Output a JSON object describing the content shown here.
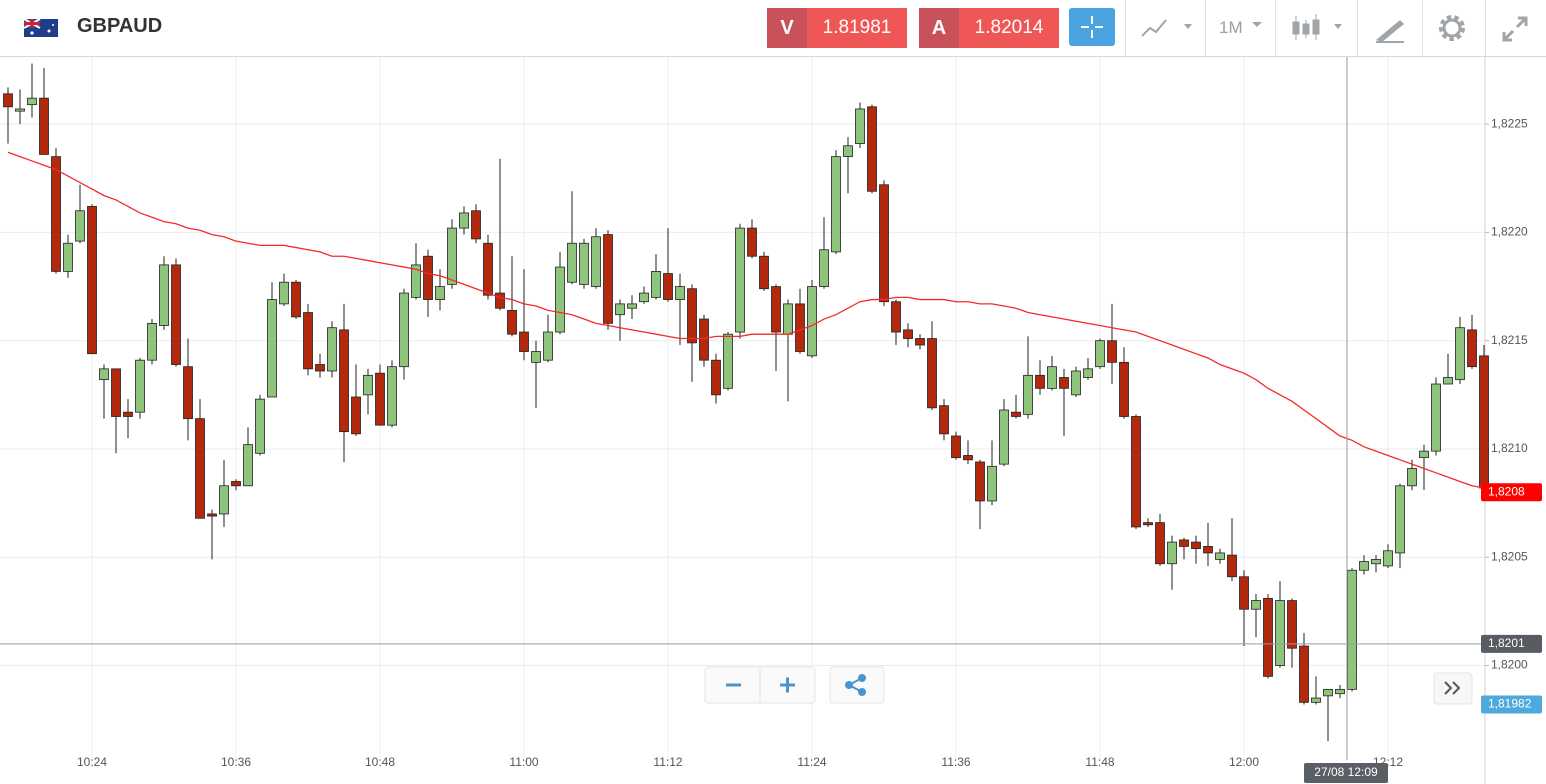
{
  "header": {
    "symbol": "GBPAUD",
    "sell_label": "V",
    "sell_price": "1.81981",
    "buy_label": "A",
    "buy_price": "1.82014",
    "timeframe": "1M"
  },
  "chart_data": {
    "type": "candlestick",
    "categories": [
      null,
      null,
      null,
      null,
      null,
      null,
      null,
      "10:24",
      null,
      null,
      null,
      null,
      null,
      null,
      null,
      null,
      null,
      null,
      null,
      "10:36",
      null,
      null,
      null,
      null,
      null,
      null,
      null,
      null,
      null,
      null,
      null,
      "10:48",
      null,
      null,
      null,
      null,
      null,
      null,
      null,
      null,
      null,
      null,
      null,
      "11:00",
      null,
      null,
      null,
      null,
      null,
      null,
      null,
      null,
      null,
      null,
      null,
      "11:12",
      null,
      null,
      null,
      null,
      null,
      null,
      null,
      null,
      null,
      null,
      null,
      "11:24",
      null,
      null,
      null,
      null,
      null,
      null,
      null,
      null,
      null,
      null,
      null,
      "11:36",
      null,
      null,
      null,
      null,
      null,
      null,
      null,
      null,
      null,
      null,
      null,
      "11:48",
      null,
      null,
      null,
      null,
      null,
      null,
      null,
      null,
      null,
      null,
      null,
      "12:00",
      null,
      null,
      null,
      null,
      null,
      null,
      null,
      null,
      null,
      null,
      null,
      "12:12",
      null,
      null,
      null,
      null,
      null,
      null,
      null,
      null
    ],
    "open": [
      1.82264,
      1.82256,
      1.82259,
      1.82262,
      1.82235,
      1.82182,
      1.82196,
      1.82212,
      1.82132,
      1.82137,
      1.82117,
      1.82117,
      1.82141,
      1.82157,
      1.82185,
      1.82138,
      1.82114,
      1.8207,
      1.8207,
      1.82085,
      1.82083,
      1.82098,
      1.82124,
      1.82167,
      1.82177,
      1.82163,
      1.82139,
      1.82136,
      1.82155,
      1.82124,
      1.82125,
      1.82135,
      1.82111,
      1.82138,
      1.8217,
      1.82189,
      1.82169,
      1.82176,
      1.82202,
      1.8221,
      1.82195,
      1.82172,
      1.82164,
      1.82154,
      1.8214,
      1.82141,
      1.82154,
      1.82177,
      1.82176,
      1.82175,
      1.82199,
      1.82162,
      1.82165,
      1.82168,
      1.8217,
      1.82181,
      1.82169,
      1.82174,
      1.8216,
      1.82141,
      1.82128,
      1.82154,
      1.82202,
      1.82189,
      1.82175,
      1.82153,
      1.82167,
      1.82143,
      1.82175,
      1.82191,
      1.82235,
      1.82241,
      1.82258,
      1.82222,
      1.82168,
      1.82155,
      1.82151,
      1.82151,
      1.8212,
      1.82106,
      1.82097,
      1.82094,
      1.82076,
      1.82093,
      1.82117,
      1.82116,
      1.82134,
      1.82128,
      1.82133,
      1.82125,
      1.82133,
      1.82138,
      1.8215,
      1.8214,
      1.82115,
      1.82066,
      1.82066,
      1.82047,
      1.82058,
      1.82057,
      1.82055,
      1.82049,
      1.82051,
      1.82041,
      1.82026,
      1.82031,
      1.82,
      1.8203,
      1.82009,
      1.81983,
      1.81986,
      1.81987,
      1.81989,
      1.82044,
      1.82047,
      1.82046,
      1.82052,
      1.82083,
      1.82096,
      1.82099,
      1.8213,
      1.82132,
      1.82155,
      1.82143
    ],
    "high": [
      1.82267,
      1.82266,
      1.82278,
      1.82276,
      1.82239,
      1.82199,
      1.82222,
      1.82213,
      1.82139,
      1.82137,
      1.82123,
      1.82142,
      1.8216,
      1.82189,
      1.82188,
      1.82151,
      1.82123,
      1.82072,
      1.82095,
      1.82086,
      1.8211,
      1.82125,
      1.82177,
      1.82181,
      1.82178,
      1.82167,
      1.82144,
      1.82159,
      1.82167,
      1.82139,
      1.82137,
      1.82139,
      1.82141,
      1.82174,
      1.82195,
      1.82192,
      1.82183,
      1.82206,
      1.82212,
      1.82213,
      1.82199,
      1.82234,
      1.82189,
      1.82183,
      1.8215,
      1.82162,
      1.82191,
      1.82219,
      1.82197,
      1.82202,
      1.82201,
      1.82169,
      1.82171,
      1.82175,
      1.8219,
      1.82202,
      1.82181,
      1.82176,
      1.82162,
      1.82144,
      1.82154,
      1.82204,
      1.82206,
      1.82191,
      1.82176,
      1.82169,
      1.82174,
      1.82178,
      1.82207,
      1.82238,
      1.82244,
      1.8226,
      1.82259,
      1.82224,
      1.82169,
      1.82158,
      1.82153,
      1.82159,
      1.82123,
      1.82108,
      1.82104,
      1.82095,
      1.82104,
      1.82123,
      1.82125,
      1.82152,
      1.82141,
      1.82143,
      1.82137,
      1.82138,
      1.82142,
      1.82151,
      1.82167,
      1.82147,
      1.82116,
      1.82068,
      1.8207,
      1.8206,
      1.82059,
      1.8206,
      1.82066,
      1.82054,
      1.82068,
      1.82044,
      1.82033,
      1.82033,
      1.82039,
      1.82031,
      1.82015,
      1.81995,
      1.81989,
      1.81991,
      1.82045,
      1.82051,
      1.82051,
      1.82056,
      1.82084,
      1.82095,
      1.82102,
      1.82133,
      1.82144,
      1.82161,
      1.82162,
      1.82148
    ],
    "low": [
      1.82241,
      1.8225,
      1.82253,
      1.82236,
      1.82181,
      1.82179,
      1.82195,
      1.82144,
      1.82114,
      1.82098,
      1.82105,
      1.82114,
      1.82139,
      1.82155,
      1.82138,
      1.82104,
      1.82068,
      1.82049,
      1.82064,
      1.82081,
      1.82083,
      1.82097,
      1.82124,
      1.82166,
      1.8216,
      1.82134,
      1.82133,
      1.82133,
      1.82094,
      1.82106,
      1.82116,
      1.82111,
      1.8211,
      1.82132,
      1.82169,
      1.82161,
      1.82164,
      1.82174,
      1.82199,
      1.82195,
      1.82169,
      1.82164,
      1.82152,
      1.82141,
      1.82119,
      1.8214,
      1.82153,
      1.82176,
      1.82174,
      1.82174,
      1.82155,
      1.8215,
      1.8216,
      1.82167,
      1.82169,
      1.82168,
      1.82148,
      1.82131,
      1.82138,
      1.82121,
      1.82127,
      1.82151,
      1.82188,
      1.82173,
      1.82136,
      1.82122,
      1.82144,
      1.82142,
      1.82174,
      1.8219,
      1.82218,
      1.82239,
      1.82218,
      1.82166,
      1.82148,
      1.82147,
      1.82146,
      1.82118,
      1.82104,
      1.82095,
      1.82093,
      1.82063,
      1.82074,
      1.82092,
      1.82114,
      1.82114,
      1.82125,
      1.82127,
      1.82106,
      1.82124,
      1.82132,
      1.82137,
      1.8213,
      1.82114,
      1.82063,
      1.82064,
      1.82046,
      1.82035,
      1.82049,
      1.82047,
      1.82046,
      1.82047,
      1.82039,
      1.82009,
      1.82013,
      1.81994,
      1.81999,
      1.81999,
      1.81982,
      1.81982,
      1.81965,
      1.81985,
      1.81988,
      1.82042,
      1.82043,
      1.82045,
      1.82045,
      1.82081,
      1.82081,
      1.82097,
      1.8213,
      1.8213,
      1.82137,
      1.8208
    ],
    "close": [
      1.82258,
      1.82257,
      1.82262,
      1.82236,
      1.82182,
      1.82195,
      1.8221,
      1.82144,
      1.82137,
      1.82115,
      1.82115,
      1.82141,
      1.82158,
      1.82185,
      1.82139,
      1.82114,
      1.82068,
      1.82069,
      1.82083,
      1.82083,
      1.82102,
      1.82123,
      1.82169,
      1.82177,
      1.82161,
      1.82137,
      1.82136,
      1.82156,
      1.82108,
      1.82107,
      1.82134,
      1.82111,
      1.82138,
      1.82172,
      1.82185,
      1.82169,
      1.82175,
      1.82202,
      1.82209,
      1.82197,
      1.82171,
      1.82165,
      1.82153,
      1.82145,
      1.82145,
      1.82154,
      1.82184,
      1.82195,
      1.82195,
      1.82198,
      1.82158,
      1.82167,
      1.82167,
      1.82172,
      1.82182,
      1.82169,
      1.82175,
      1.82149,
      1.82141,
      1.82125,
      1.82153,
      1.82202,
      1.82189,
      1.82174,
      1.82154,
      1.82167,
      1.82145,
      1.82175,
      1.82192,
      1.82235,
      1.8224,
      1.82257,
      1.82219,
      1.82168,
      1.82154,
      1.82151,
      1.82148,
      1.82119,
      1.82107,
      1.82096,
      1.82095,
      1.82076,
      1.82092,
      1.82118,
      1.82115,
      1.82134,
      1.82128,
      1.82138,
      1.82128,
      1.82136,
      1.82137,
      1.8215,
      1.8214,
      1.82115,
      1.82064,
      1.82065,
      1.82047,
      1.82057,
      1.82055,
      1.82054,
      1.82052,
      1.82052,
      1.82041,
      1.82026,
      1.8203,
      1.81995,
      1.8203,
      1.82008,
      1.81983,
      1.81985,
      1.81989,
      1.81989,
      1.82044,
      1.82048,
      1.82049,
      1.82053,
      1.82083,
      1.82091,
      1.82099,
      1.8213,
      1.82133,
      1.82156,
      1.82138,
      1.82082
    ],
    "up_color": "#8fc47c",
    "down_color": "#b3290e",
    "ma": {
      "color": "#f22b2b",
      "values": [
        1.82237,
        1.82235,
        1.82233,
        1.82231,
        1.82229,
        1.82226,
        1.82223,
        1.8222,
        1.82217,
        1.82215,
        1.82212,
        1.82209,
        1.82207,
        1.82205,
        1.82204,
        1.82202,
        1.82201,
        1.82199,
        1.82198,
        1.82196,
        1.82195,
        1.82194,
        1.82194,
        1.82194,
        1.82193,
        1.82192,
        1.82191,
        1.82189,
        1.82189,
        1.82188,
        1.82187,
        1.82186,
        1.82185,
        1.82184,
        1.82183,
        1.82181,
        1.8218,
        1.82178,
        1.82176,
        1.82174,
        1.82172,
        1.8217,
        1.82169,
        1.82167,
        1.82166,
        1.82164,
        1.82163,
        1.82162,
        1.8216,
        1.82158,
        1.82157,
        1.82156,
        1.82155,
        1.82154,
        1.82153,
        1.82152,
        1.82151,
        1.82151,
        1.82151,
        1.82152,
        1.82152,
        1.82152,
        1.82153,
        1.82153,
        1.82153,
        1.82153,
        1.82155,
        1.82157,
        1.8216,
        1.82162,
        1.82165,
        1.82168,
        1.82169,
        1.82169,
        1.8217,
        1.8217,
        1.82169,
        1.82169,
        1.82169,
        1.82168,
        1.82168,
        1.82167,
        1.82167,
        1.82166,
        1.82165,
        1.82163,
        1.82162,
        1.82161,
        1.8216,
        1.82159,
        1.82158,
        1.82157,
        1.82156,
        1.82155,
        1.82154,
        1.82152,
        1.8215,
        1.82148,
        1.82146,
        1.82144,
        1.82142,
        1.82139,
        1.82137,
        1.82135,
        1.82132,
        1.82128,
        1.82125,
        1.82122,
        1.82118,
        1.82114,
        1.8211,
        1.82106,
        1.82104,
        1.82101,
        1.82099,
        1.82097,
        1.82095,
        1.82093,
        1.82091,
        1.82089,
        1.82087,
        1.82085,
        1.82083,
        1.82082
      ]
    },
    "ylim": [
      1.81961,
      1.82281
    ],
    "yticks": [
      {
        "value": 1.82,
        "label": "1,8200"
      },
      {
        "value": 1.8205,
        "label": "1,8205"
      },
      {
        "value": 1.821,
        "label": "1,8210"
      },
      {
        "value": 1.8215,
        "label": "1,8215"
      },
      {
        "value": 1.822,
        "label": "1,8220"
      },
      {
        "value": 1.8225,
        "label": "1,8225"
      }
    ],
    "grid": true,
    "price_labels": [
      {
        "value": 1.8208,
        "label": "1,8208",
        "color": "#ff0000"
      },
      {
        "value": 1.8201,
        "label": "1,8201",
        "color": "#575c63",
        "line": true
      },
      {
        "value": 1.81982,
        "label": "1,81982",
        "color": "#4ea9dd"
      }
    ],
    "crosshair_label": "27/08 12:09"
  }
}
